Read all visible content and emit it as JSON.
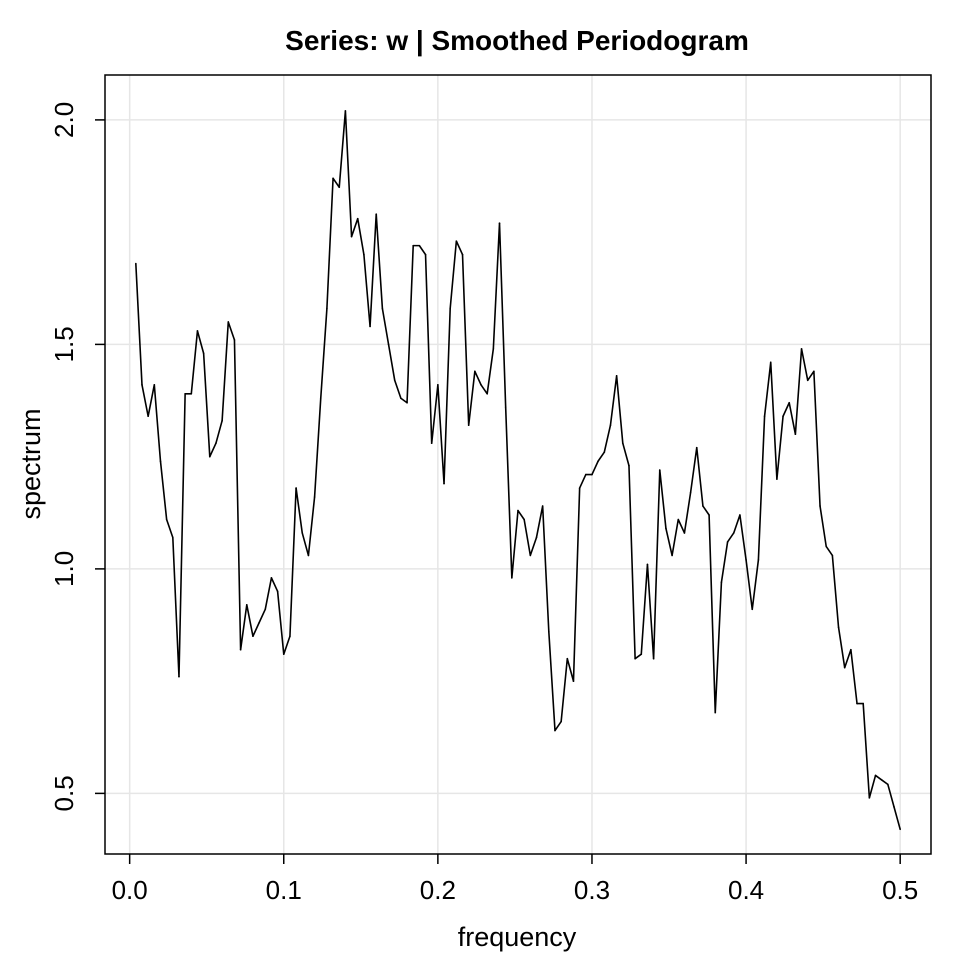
{
  "chart_data": {
    "type": "line",
    "title": "Series: w  |  Smoothed Periodogram",
    "xlabel": "frequency",
    "ylabel": "spectrum",
    "xlim": [
      -0.016,
      0.52
    ],
    "ylim": [
      0.365,
      2.1
    ],
    "x_ticks": [
      0.0,
      0.1,
      0.2,
      0.3,
      0.4,
      0.5
    ],
    "x_tick_labels": [
      "0.0",
      "0.1",
      "0.2",
      "0.3",
      "0.4",
      "0.5"
    ],
    "y_ticks": [
      0.5,
      1.0,
      1.5,
      2.0
    ],
    "y_tick_labels": [
      "0.5",
      "1.0",
      "1.5",
      "2.0"
    ],
    "grid": true,
    "series": [
      {
        "color": "#000000",
        "x": [
          0.004,
          0.008,
          0.012,
          0.016,
          0.02,
          0.024,
          0.028,
          0.032,
          0.036,
          0.04,
          0.044,
          0.048,
          0.052,
          0.056,
          0.06,
          0.064,
          0.068,
          0.072,
          0.076,
          0.08,
          0.084,
          0.088,
          0.092,
          0.096,
          0.1,
          0.104,
          0.108,
          0.112,
          0.116,
          0.12,
          0.124,
          0.128,
          0.132,
          0.136,
          0.14,
          0.144,
          0.148,
          0.152,
          0.156,
          0.16,
          0.164,
          0.168,
          0.172,
          0.176,
          0.18,
          0.184,
          0.188,
          0.192,
          0.196,
          0.2,
          0.204,
          0.208,
          0.212,
          0.216,
          0.22,
          0.224,
          0.228,
          0.232,
          0.236,
          0.24,
          0.244,
          0.248,
          0.252,
          0.256,
          0.26,
          0.264,
          0.268,
          0.272,
          0.276,
          0.28,
          0.284,
          0.288,
          0.292,
          0.296,
          0.3,
          0.304,
          0.308,
          0.312,
          0.316,
          0.32,
          0.324,
          0.328,
          0.332,
          0.336,
          0.34,
          0.344,
          0.348,
          0.352,
          0.356,
          0.36,
          0.364,
          0.368,
          0.372,
          0.376,
          0.38,
          0.384,
          0.388,
          0.392,
          0.396,
          0.4,
          0.404,
          0.408,
          0.412,
          0.416,
          0.42,
          0.424,
          0.428,
          0.432,
          0.436,
          0.44,
          0.444,
          0.448,
          0.452,
          0.456,
          0.46,
          0.464,
          0.468,
          0.472,
          0.476,
          0.48,
          0.484,
          0.488,
          0.492,
          0.496,
          0.5
        ],
        "values": [
          1.68,
          1.41,
          1.34,
          1.41,
          1.24,
          1.11,
          1.07,
          0.76,
          1.39,
          1.39,
          1.53,
          1.48,
          1.25,
          1.28,
          1.33,
          1.55,
          1.51,
          0.82,
          0.92,
          0.85,
          0.88,
          0.91,
          0.98,
          0.95,
          0.81,
          0.85,
          1.18,
          1.08,
          1.03,
          1.16,
          1.38,
          1.58,
          1.87,
          1.85,
          2.02,
          1.74,
          1.78,
          1.7,
          1.54,
          1.79,
          1.58,
          1.5,
          1.42,
          1.38,
          1.37,
          1.72,
          1.72,
          1.7,
          1.28,
          1.41,
          1.19,
          1.58,
          1.73,
          1.7,
          1.32,
          1.44,
          1.41,
          1.39,
          1.49,
          1.77,
          1.36,
          0.98,
          1.13,
          1.11,
          1.03,
          1.07,
          1.14,
          0.86,
          0.64,
          0.66,
          0.8,
          0.75,
          1.18,
          1.21,
          1.21,
          1.24,
          1.26,
          1.32,
          1.43,
          1.28,
          1.23,
          0.8,
          0.81,
          1.01,
          0.8,
          1.22,
          1.09,
          1.03,
          1.11,
          1.08,
          1.17,
          1.27,
          1.14,
          1.12,
          0.68,
          0.97,
          1.06,
          1.08,
          1.12,
          1.02,
          0.91,
          1.02,
          1.34,
          1.46,
          1.2,
          1.34,
          1.37,
          1.3,
          1.49,
          1.42,
          1.44,
          1.14,
          1.05,
          1.03,
          0.87,
          0.78,
          0.82,
          0.7,
          0.7,
          0.49,
          0.54,
          0.53,
          0.52,
          0.47,
          0.42
        ]
      }
    ]
  }
}
